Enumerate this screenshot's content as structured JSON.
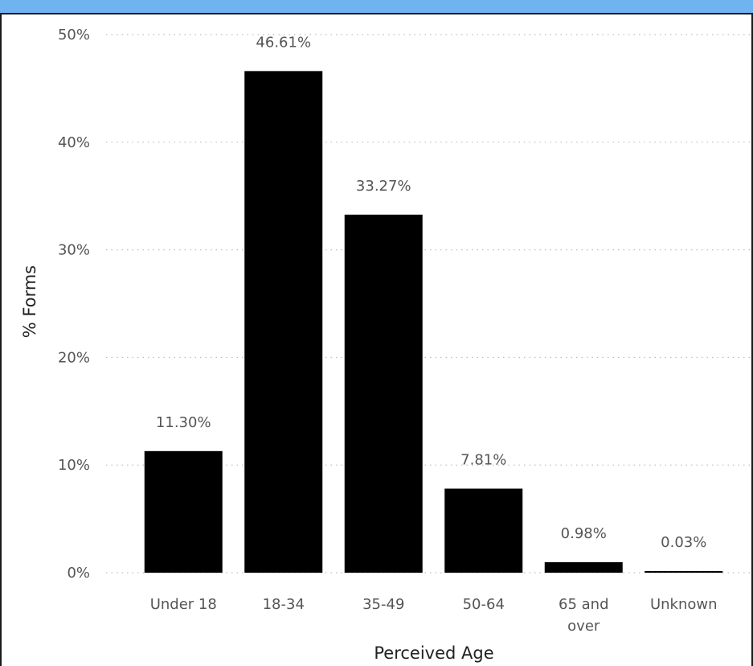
{
  "chart_data": {
    "type": "bar",
    "categories": [
      [
        "Under 18"
      ],
      [
        "18-34"
      ],
      [
        "35-49"
      ],
      [
        "50-64"
      ],
      [
        "65 and",
        "over"
      ],
      [
        "Unknown"
      ]
    ],
    "values": [
      11.3,
      46.61,
      33.27,
      7.81,
      0.98,
      0.03
    ],
    "data_labels": [
      "11.30%",
      "46.61%",
      "33.27%",
      "7.81%",
      "0.98%",
      "0.03%"
    ],
    "xlabel": "Perceived Age",
    "ylabel": "% Forms",
    "ylim": [
      0,
      50
    ],
    "yticks": [
      0,
      10,
      20,
      30,
      40,
      50
    ],
    "ytick_labels": [
      "0%",
      "10%",
      "20%",
      "30%",
      "40%",
      "50%"
    ],
    "bar_color": "#000000",
    "grid": true,
    "grid_style": "dotted"
  },
  "colors": {
    "header_accent": "#6fb3f0",
    "grid": "#bdbdbd"
  }
}
